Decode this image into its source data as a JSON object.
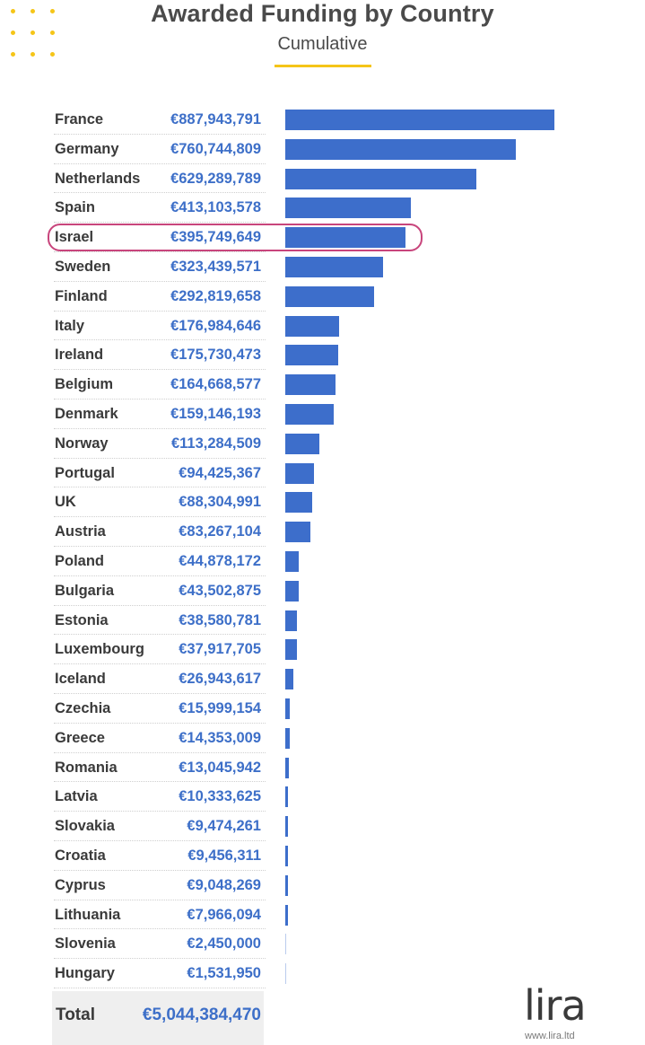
{
  "title": "Awarded Funding by Country",
  "subtitle": "Cumulative",
  "colors": {
    "bar": "#3d6ecb",
    "amount_text": "#3d6fc8",
    "accent": "#f5c518",
    "highlight": "#c8457c"
  },
  "highlighted_country": "Israel",
  "chart_data": {
    "type": "bar",
    "orientation": "horizontal",
    "categories": [
      "France",
      "Germany",
      "Netherlands",
      "Spain",
      "Israel",
      "Sweden",
      "Finland",
      "Italy",
      "Ireland",
      "Belgium",
      "Denmark",
      "Norway",
      "Portugal",
      "UK",
      "Austria",
      "Poland",
      "Bulgaria",
      "Estonia",
      "Luxembourg",
      "Iceland",
      "Czechia",
      "Greece",
      "Romania",
      "Latvia",
      "Slovakia",
      "Croatia",
      "Cyprus",
      "Lithuania",
      "Slovenia",
      "Hungary"
    ],
    "values": [
      887943791,
      760744809,
      629289789,
      413103578,
      395749649,
      323439571,
      292819658,
      176984646,
      175730473,
      164668577,
      159146193,
      113284509,
      94425367,
      88304991,
      83267104,
      44878172,
      43502875,
      38580781,
      37917705,
      26943617,
      15999154,
      14353009,
      13045942,
      10333625,
      9474261,
      9456311,
      9048269,
      7966094,
      2450000,
      1531950
    ],
    "labels": [
      "€887,943,791",
      "€760,744,809",
      "€629,289,789",
      "€413,103,578",
      "€395,749,649",
      "€323,439,571",
      "€292,819,658",
      "€176,984,646",
      "€175,730,473",
      "€164,668,577",
      "€159,146,193",
      "€113,284,509",
      "€94,425,367",
      "€88,304,991",
      "€83,267,104",
      "€44,878,172",
      "€43,502,875",
      "€38,580,781",
      "€37,917,705",
      "€26,943,617",
      "€15,999,154",
      "€14,353,009",
      "€13,045,942",
      "€10,333,625",
      "€9,474,261",
      "€9,456,311",
      "€9,048,269",
      "€7,966,094",
      "€2,450,000",
      "€1,531,950"
    ],
    "title": "Awarded Funding by Country",
    "subtitle": "Cumulative",
    "grid": false
  },
  "total": {
    "label": "Total",
    "value": "€5,044,384,470"
  },
  "logo": {
    "text": "lira",
    "url": "www.lira.ltd"
  }
}
